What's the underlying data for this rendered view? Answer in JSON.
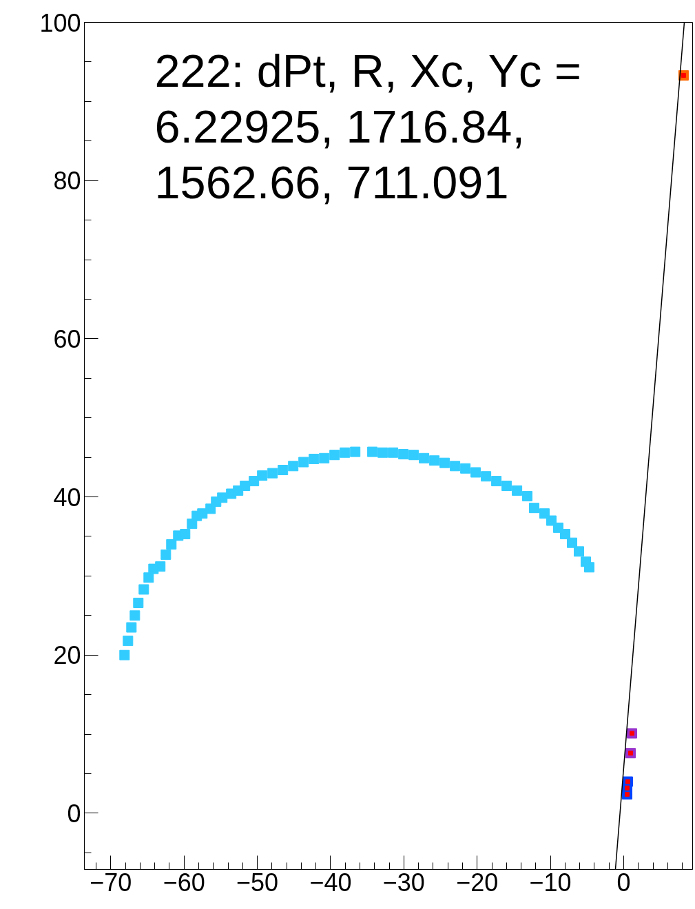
{
  "chart_data": {
    "type": "scatter",
    "marker": "square",
    "grid": false,
    "annotations": [
      "222: dPt, R, Xc, Yc =\n6.22925, 1716.84,\n1562.66, 711.091"
    ],
    "xlim": [
      -73.6,
      9.4
    ],
    "ylim": [
      -7.1,
      100
    ],
    "xticks": [
      {
        "value": -70,
        "label": "−70"
      },
      {
        "value": -60,
        "label": "−60"
      },
      {
        "value": -50,
        "label": "−50"
      },
      {
        "value": -40,
        "label": "−40"
      },
      {
        "value": -30,
        "label": "−30"
      },
      {
        "value": -20,
        "label": "−20"
      },
      {
        "value": -10,
        "label": "−10"
      },
      0,
      {
        "value": -72,
        "label": null
      },
      {
        "value": -68,
        "label": null
      },
      {
        "value": -66,
        "label": null
      },
      {
        "value": -64,
        "label": null
      },
      {
        "value": -62,
        "label": null
      },
      {
        "value": -58,
        "label": null
      },
      {
        "value": -56,
        "label": null
      },
      {
        "value": -54,
        "label": null
      },
      {
        "value": -52,
        "label": null
      },
      {
        "value": -48,
        "label": null
      },
      {
        "value": -46,
        "label": null
      },
      {
        "value": -44,
        "label": null
      },
      {
        "value": -42,
        "label": null
      },
      {
        "value": -38,
        "label": null
      },
      {
        "value": -36,
        "label": null
      },
      {
        "value": -34,
        "label": null
      },
      {
        "value": -32,
        "label": null
      },
      {
        "value": -28,
        "label": null
      },
      {
        "value": -26,
        "label": null
      },
      {
        "value": -24,
        "label": null
      },
      {
        "value": -22,
        "label": null
      },
      {
        "value": -18,
        "label": null
      },
      {
        "value": -16,
        "label": null
      },
      {
        "value": -14,
        "label": null
      },
      {
        "value": -12,
        "label": null
      },
      {
        "value": -8,
        "label": null
      },
      {
        "value": -6,
        "label": null
      },
      {
        "value": -4,
        "label": null
      },
      {
        "value": -2,
        "label": null
      },
      {
        "value": 2,
        "label": null
      },
      {
        "value": 4,
        "label": null
      },
      {
        "value": 6,
        "label": null
      },
      {
        "value": 8,
        "label": null
      }
    ],
    "yticks": [
      0,
      20,
      40,
      60,
      80,
      100,
      {
        "value": -5,
        "label": null
      },
      {
        "value": 5,
        "label": null
      },
      {
        "value": 10,
        "label": null
      },
      {
        "value": 15,
        "label": null
      },
      {
        "value": 25,
        "label": null
      },
      {
        "value": 30,
        "label": null
      },
      {
        "value": 35,
        "label": null
      },
      {
        "value": 45,
        "label": null
      },
      {
        "value": 50,
        "label": null
      },
      {
        "value": 55,
        "label": null
      },
      {
        "value": 65,
        "label": null
      },
      {
        "value": 70,
        "label": null
      },
      {
        "value": 75,
        "label": null
      },
      {
        "value": 85,
        "label": null
      },
      {
        "value": 90,
        "label": null
      },
      {
        "value": 95,
        "label": null
      }
    ],
    "series": [
      {
        "color": "#33ccff",
        "x": [
          -68.12,
          -67.65,
          -67.18,
          -66.71,
          -66.24,
          -65.49,
          -64.83,
          -64.17,
          -63.24,
          -62.48,
          -61.73,
          -60.79,
          -59.85,
          -58.91,
          -58.26,
          -57.5,
          -56.38,
          -55.62,
          -54.78,
          -53.56,
          -52.62,
          -51.68,
          -50.46,
          -49.33,
          -47.92,
          -46.51,
          -45.1,
          -43.69,
          -42.28,
          -40.87,
          -39.46,
          -38.05,
          -36.64,
          -34.3,
          -32.89,
          -31.48,
          -30.07,
          -28.66,
          -27.25,
          -25.84,
          -24.43,
          -23.02,
          -21.61,
          -20.2,
          -18.79,
          -17.38,
          -15.97,
          -14.56,
          -13.16,
          -12.22,
          -10.81,
          -9.87,
          -8.93,
          -7.99,
          -7.05,
          -6.11,
          -5.17,
          -4.7
        ],
        "values": [
          20.0,
          21.8,
          23.5,
          25.0,
          26.6,
          28.3,
          29.8,
          30.9,
          31.2,
          32.7,
          34.0,
          35.1,
          35.3,
          36.6,
          37.6,
          37.9,
          38.5,
          39.4,
          39.9,
          40.4,
          40.8,
          41.4,
          42.0,
          42.7,
          43.0,
          43.4,
          43.9,
          44.4,
          44.8,
          44.9,
          45.3,
          45.6,
          45.7,
          45.7,
          45.6,
          45.6,
          45.4,
          45.3,
          44.9,
          44.6,
          44.3,
          43.9,
          43.6,
          43.1,
          42.6,
          42.0,
          41.4,
          40.8,
          40.1,
          38.6,
          37.9,
          37.0,
          36.1,
          35.3,
          34.2,
          33.1,
          31.8,
          31.1
        ]
      },
      {
        "color": "#9933cc",
        "x": [
          1.13,
          0.94
        ],
        "values": [
          10.1,
          7.6
        ]
      },
      {
        "color": "#0044ff",
        "x": [
          0.56,
          0.47,
          0.47
        ],
        "values": [
          4.0,
          3.2,
          2.4
        ]
      },
      {
        "color": "#ff6600",
        "x": [
          8.17
        ],
        "values": [
          93.3
        ]
      },
      {
        "color": "#ff0000",
        "x": [
          1.13,
          0.94,
          0.56,
          0.47,
          0.47,
          8.17
        ],
        "values": [
          10.1,
          7.6,
          4.0,
          3.2,
          2.4,
          93.3
        ]
      },
      {
        "type": "line",
        "color": "#000000",
        "marker": "none",
        "x": [
          -1.13,
          8.27
        ],
        "values": [
          -7.1,
          100
        ]
      }
    ]
  }
}
